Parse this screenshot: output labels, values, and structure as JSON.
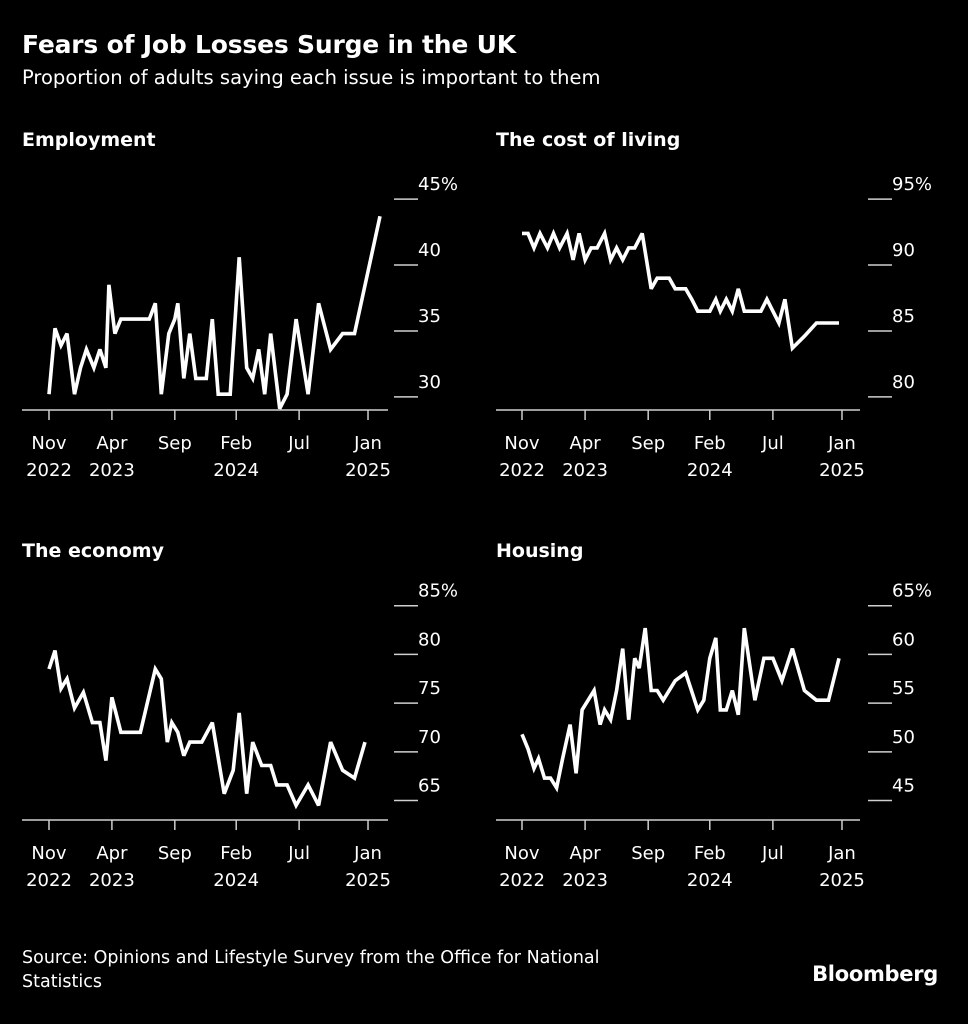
{
  "header": {
    "title": "Fears of Job Losses Surge in the UK",
    "subtitle": "Proportion of adults saying each issue is important to them"
  },
  "footer": {
    "source": "Source: Opinions and Lifestyle Survey from the Office for National Statistics",
    "brand": "Bloomberg"
  },
  "colors": {
    "background": "#000000",
    "line": "#ffffff",
    "text": "#ffffff"
  },
  "chart_data": [
    {
      "type": "line",
      "title": "Employment",
      "unit": "%",
      "x_range": [
        2022.83,
        2025.04
      ],
      "ylim": [
        29,
        46
      ],
      "yticks": [
        30,
        35,
        40,
        45
      ],
      "ytick_labels": [
        "30",
        "35",
        "40",
        "45%"
      ],
      "grid": false,
      "xticks": [
        {
          "x": 2022.83,
          "line1": "Nov",
          "line2": "2022"
        },
        {
          "x": 2023.25,
          "line1": "Apr",
          "line2": "2023"
        },
        {
          "x": 2023.67,
          "line1": "Sep",
          "line2": ""
        },
        {
          "x": 2024.08,
          "line1": "Feb",
          "line2": "2024"
        },
        {
          "x": 2024.5,
          "line1": "Jul",
          "line2": ""
        },
        {
          "x": 2024.96,
          "line1": "Jan",
          "line2": "2025"
        }
      ],
      "series": [
        {
          "x": [
            2022.83,
            2022.87,
            2022.91,
            2022.95,
            2023.0,
            2023.04,
            2023.08,
            2023.13,
            2023.17,
            2023.21,
            2023.23,
            2023.27,
            2023.31,
            2023.38,
            2023.44,
            2023.5,
            2023.54,
            2023.58,
            2023.63,
            2023.67,
            2023.69,
            2023.73,
            2023.77,
            2023.81,
            2023.88,
            2023.92,
            2023.96,
            2024.04,
            2024.1,
            2024.15,
            2024.19,
            2024.23,
            2024.27,
            2024.31,
            2024.37,
            2024.42,
            2024.48,
            2024.56,
            2024.63,
            2024.71,
            2024.79,
            2024.87,
            2025.04
          ],
          "y": [
            30.2,
            35.2,
            33.9,
            34.8,
            30.2,
            32.2,
            33.6,
            32.2,
            33.6,
            32.2,
            38.5,
            34.8,
            35.9,
            35.9,
            35.9,
            35.9,
            37.1,
            30.2,
            34.8,
            35.9,
            37.1,
            31.4,
            34.8,
            31.4,
            31.4,
            35.9,
            30.2,
            30.2,
            40.6,
            32.2,
            31.4,
            33.6,
            30.2,
            34.8,
            29.1,
            30.2,
            35.9,
            30.2,
            37.1,
            33.6,
            34.8,
            34.8,
            43.7
          ]
        }
      ]
    },
    {
      "type": "line",
      "title": "The cost of living",
      "unit": "%",
      "x_range": [
        2022.83,
        2025.04
      ],
      "ylim": [
        79,
        96
      ],
      "yticks": [
        80,
        85,
        90,
        95
      ],
      "ytick_labels": [
        "80",
        "85",
        "90",
        "95%"
      ],
      "grid": false,
      "xticks": [
        {
          "x": 2022.83,
          "line1": "Nov",
          "line2": "2022"
        },
        {
          "x": 2023.25,
          "line1": "Apr",
          "line2": "2023"
        },
        {
          "x": 2023.67,
          "line1": "Sep",
          "line2": ""
        },
        {
          "x": 2024.08,
          "line1": "Feb",
          "line2": "2024"
        },
        {
          "x": 2024.5,
          "line1": "Jul",
          "line2": ""
        },
        {
          "x": 2024.96,
          "line1": "Jan",
          "line2": "2025"
        }
      ],
      "series": [
        {
          "x": [
            2022.83,
            2022.87,
            2022.91,
            2022.95,
            2023.0,
            2023.04,
            2023.08,
            2023.13,
            2023.17,
            2023.21,
            2023.25,
            2023.29,
            2023.33,
            2023.38,
            2023.42,
            2023.46,
            2023.5,
            2023.54,
            2023.58,
            2023.63,
            2023.69,
            2023.73,
            2023.77,
            2023.81,
            2023.85,
            2023.88,
            2023.92,
            2023.96,
            2024.0,
            2024.04,
            2024.08,
            2024.12,
            2024.15,
            2024.19,
            2024.23,
            2024.27,
            2024.31,
            2024.35,
            2024.38,
            2024.42,
            2024.46,
            2024.5,
            2024.54,
            2024.58,
            2024.63,
            2024.71,
            2024.79,
            2024.87,
            2024.94
          ],
          "y": [
            92.4,
            92.4,
            91.3,
            92.4,
            91.3,
            92.4,
            91.3,
            92.4,
            90.4,
            92.4,
            90.4,
            91.3,
            91.3,
            92.4,
            90.4,
            91.3,
            90.4,
            91.3,
            91.3,
            92.4,
            88.2,
            89.0,
            89.0,
            89.0,
            88.2,
            88.2,
            88.2,
            87.4,
            86.5,
            86.5,
            86.5,
            87.4,
            86.5,
            87.4,
            86.5,
            88.2,
            86.5,
            86.5,
            86.5,
            86.5,
            87.4,
            86.5,
            85.6,
            87.4,
            83.7,
            84.6,
            85.6,
            85.6,
            85.6
          ]
        }
      ]
    },
    {
      "type": "line",
      "title": "The economy",
      "unit": "%",
      "x_range": [
        2022.83,
        2025.04
      ],
      "ylim": [
        63,
        86
      ],
      "yticks": [
        65,
        70,
        75,
        80,
        85
      ],
      "ytick_labels": [
        "65",
        "70",
        "75",
        "80",
        "85%"
      ],
      "grid": false,
      "xticks": [
        {
          "x": 2022.83,
          "line1": "Nov",
          "line2": "2022"
        },
        {
          "x": 2023.25,
          "line1": "Apr",
          "line2": "2023"
        },
        {
          "x": 2023.67,
          "line1": "Sep",
          "line2": ""
        },
        {
          "x": 2024.08,
          "line1": "Feb",
          "line2": "2024"
        },
        {
          "x": 2024.5,
          "line1": "Jul",
          "line2": ""
        },
        {
          "x": 2024.96,
          "line1": "Jan",
          "line2": "2025"
        }
      ],
      "series": [
        {
          "x": [
            2022.83,
            2022.87,
            2022.91,
            2022.95,
            2023.0,
            2023.06,
            2023.12,
            2023.17,
            2023.21,
            2023.25,
            2023.31,
            2023.38,
            2023.44,
            2023.54,
            2023.58,
            2023.62,
            2023.65,
            2023.69,
            2023.73,
            2023.77,
            2023.85,
            2023.92,
            2024.0,
            2024.06,
            2024.1,
            2024.15,
            2024.19,
            2024.25,
            2024.31,
            2024.35,
            2024.42,
            2024.48,
            2024.56,
            2024.63,
            2024.71,
            2024.79,
            2024.87,
            2024.94
          ],
          "y": [
            78.5,
            80.4,
            76.5,
            77.5,
            74.5,
            76.1,
            73.0,
            73.0,
            69.1,
            75.6,
            72.0,
            72.0,
            72.0,
            78.5,
            77.5,
            71.0,
            73.0,
            72.0,
            69.6,
            71.0,
            71.0,
            73.0,
            65.7,
            68.1,
            74.0,
            65.7,
            71.0,
            68.6,
            68.6,
            66.6,
            66.6,
            64.5,
            66.6,
            64.5,
            71.0,
            68.1,
            67.3,
            71.0
          ]
        }
      ]
    },
    {
      "type": "line",
      "title": "Housing",
      "unit": "%",
      "x_range": [
        2022.83,
        2025.04
      ],
      "ylim": [
        43,
        66
      ],
      "yticks": [
        45,
        50,
        55,
        60,
        65
      ],
      "ytick_labels": [
        "45",
        "50",
        "55",
        "60",
        "65%"
      ],
      "grid": false,
      "xticks": [
        {
          "x": 2022.83,
          "line1": "Nov",
          "line2": "2022"
        },
        {
          "x": 2023.25,
          "line1": "Apr",
          "line2": "2023"
        },
        {
          "x": 2023.67,
          "line1": "Sep",
          "line2": ""
        },
        {
          "x": 2024.08,
          "line1": "Feb",
          "line2": "2024"
        },
        {
          "x": 2024.5,
          "line1": "Jul",
          "line2": ""
        },
        {
          "x": 2024.96,
          "line1": "Jan",
          "line2": "2025"
        }
      ],
      "series": [
        {
          "x": [
            2022.83,
            2022.87,
            2022.91,
            2022.94,
            2022.98,
            2023.02,
            2023.06,
            2023.1,
            2023.15,
            2023.19,
            2023.23,
            2023.27,
            2023.31,
            2023.35,
            2023.38,
            2023.42,
            2023.46,
            2023.5,
            2023.54,
            2023.58,
            2023.61,
            2023.65,
            2023.69,
            2023.73,
            2023.77,
            2023.85,
            2023.92,
            2024.0,
            2024.04,
            2024.08,
            2024.12,
            2024.15,
            2024.19,
            2024.23,
            2024.27,
            2024.31,
            2024.38,
            2024.44,
            2024.5,
            2024.56,
            2024.63,
            2024.71,
            2024.79,
            2024.87,
            2024.94
          ],
          "y": [
            51.8,
            50.3,
            48.3,
            49.3,
            47.3,
            47.3,
            46.3,
            49.3,
            52.8,
            47.8,
            54.3,
            55.3,
            56.3,
            52.8,
            54.3,
            53.3,
            56.3,
            60.6,
            53.3,
            59.6,
            58.6,
            62.7,
            56.3,
            56.3,
            55.3,
            57.3,
            58.1,
            54.3,
            55.3,
            59.6,
            61.7,
            54.3,
            54.3,
            56.3,
            53.8,
            62.7,
            55.3,
            59.6,
            59.6,
            57.3,
            60.6,
            56.3,
            55.3,
            55.3,
            59.6
          ]
        }
      ]
    }
  ]
}
